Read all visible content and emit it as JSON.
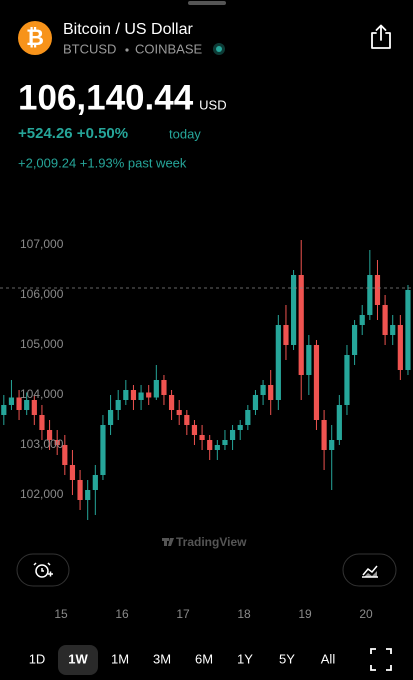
{
  "header": {
    "logo_symbol": "₿",
    "title": "Bitcoin / US Dollar",
    "symbol": "BTCUSD",
    "exchange": "COINBASE"
  },
  "price": {
    "value": 106140.44,
    "label": "106,140.44"
  },
  "currency": "USD",
  "change_today": "+524.26 +0.50%",
  "today_label": "today",
  "change_week": "+2,009.24 +1.93% past week",
  "chart_data": {
    "type": "candlestick",
    "watermark": "TradingView",
    "up_color": "#26a69a",
    "down_color": "#ef5350",
    "xlim": [
      14,
      20.77
    ],
    "xticks": [
      15,
      16,
      17,
      18,
      19,
      20
    ],
    "ylim": [
      101300,
      107400
    ],
    "yticks": [
      {
        "value": 102000,
        "label": "102,000"
      },
      {
        "value": 103000,
        "label": "103,000"
      },
      {
        "value": 104000,
        "label": "104,000"
      },
      {
        "value": 105000,
        "label": "105,000"
      },
      {
        "value": 106000,
        "label": "106,000"
      },
      {
        "value": 107000,
        "label": "107,000"
      }
    ],
    "x": [
      14.0625,
      14.1875,
      14.3125,
      14.4375,
      14.5625,
      14.6875,
      14.8125,
      14.9375,
      15.0625,
      15.1875,
      15.3125,
      15.4375,
      15.5625,
      15.6875,
      15.8125,
      15.9375,
      16.0625,
      16.1875,
      16.3125,
      16.4375,
      16.5625,
      16.6875,
      16.8125,
      16.9375,
      17.0625,
      17.1875,
      17.3125,
      17.4375,
      17.5625,
      17.6875,
      17.8125,
      17.9375,
      18.0625,
      18.1875,
      18.3125,
      18.4375,
      18.5625,
      18.6875,
      18.8125,
      18.9375,
      19.0625,
      19.1875,
      19.3125,
      19.4375,
      19.5625,
      19.6875,
      19.8125,
      19.9375,
      20.0625,
      20.1875,
      20.3125,
      20.4375,
      20.5625,
      20.6875
    ],
    "open": [
      103600,
      103800,
      103950,
      103700,
      103900,
      103600,
      103300,
      103100,
      103000,
      102600,
      102300,
      101900,
      102100,
      102400,
      103400,
      103700,
      103900,
      104100,
      103900,
      104050,
      103950,
      104300,
      104000,
      103700,
      103600,
      103400,
      103200,
      103100,
      102900,
      103000,
      103100,
      103300,
      103400,
      103700,
      104000,
      104200,
      103900,
      105400,
      105000,
      106400,
      104400,
      105000,
      103500,
      102900,
      103100,
      103800,
      104800,
      105400,
      105600,
      106400,
      105800,
      105200,
      105400,
      104500
    ],
    "high": [
      104000,
      104300,
      104100,
      104050,
      104000,
      103800,
      103500,
      103300,
      103200,
      102900,
      102500,
      102300,
      102600,
      103600,
      104000,
      104100,
      104300,
      104200,
      104200,
      104200,
      104600,
      104400,
      104100,
      103900,
      103700,
      103500,
      103400,
      103200,
      103100,
      103300,
      103400,
      103500,
      103800,
      104100,
      104300,
      104500,
      105600,
      105800,
      106500,
      107100,
      105200,
      105100,
      103700,
      103400,
      104000,
      105000,
      105500,
      105800,
      106900,
      106700,
      106000,
      105600,
      105600,
      106200
    ],
    "low": [
      103400,
      103700,
      103500,
      103600,
      103400,
      103100,
      102900,
      102800,
      102400,
      102000,
      101700,
      101500,
      101600,
      102300,
      103200,
      103500,
      103800,
      103700,
      103700,
      103800,
      103900,
      103800,
      103500,
      103400,
      103200,
      103000,
      102900,
      102700,
      102700,
      102900,
      102900,
      103100,
      103300,
      103600,
      103800,
      103600,
      103700,
      104700,
      104900,
      103900,
      104000,
      103300,
      102500,
      102100,
      103000,
      103600,
      104600,
      105200,
      105500,
      105500,
      105000,
      105000,
      104300,
      104400
    ],
    "close": [
      103800,
      103950,
      103700,
      103900,
      103600,
      103300,
      103100,
      103000,
      102600,
      102300,
      101900,
      102100,
      102400,
      103400,
      103700,
      103900,
      104100,
      103900,
      104050,
      103950,
      104300,
      104000,
      103700,
      103600,
      103400,
      103200,
      103100,
      102900,
      103000,
      103100,
      103300,
      103400,
      103700,
      104000,
      104200,
      103900,
      105400,
      105000,
      106400,
      104400,
      105000,
      103500,
      102900,
      103100,
      103800,
      104800,
      105400,
      105600,
      106400,
      105800,
      105200,
      105400,
      104500,
      106100
    ]
  },
  "timeframes": [
    "1D",
    "1W",
    "1M",
    "3M",
    "6M",
    "1Y",
    "5Y",
    "All"
  ],
  "selected_timeframe": 1
}
